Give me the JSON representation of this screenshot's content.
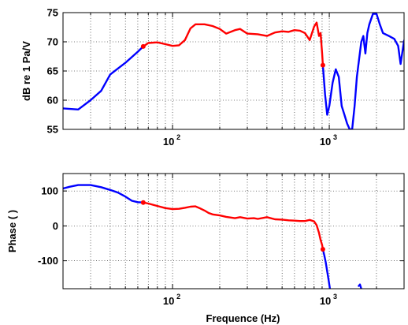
{
  "chart_data": [
    {
      "type": "line",
      "x_scale": "log",
      "xlim": [
        20,
        3000
      ],
      "ylim": [
        55,
        75
      ],
      "yticks": [
        55,
        60,
        65,
        70,
        75
      ],
      "ylabel": "dB re 1 Pa/V",
      "xlabel": "",
      "grid": "dotted",
      "series": [
        {
          "color": "#0000ff",
          "points": [
            [
              20,
              58.6
            ],
            [
              25,
              58.4
            ],
            [
              30,
              60
            ],
            [
              35,
              61.6
            ],
            [
              40,
              64.4
            ],
            [
              50,
              66.4
            ],
            [
              60,
              68.3
            ],
            [
              65,
              69.2
            ]
          ]
        },
        {
          "color": "#ff0000",
          "points": [
            [
              65,
              69.2
            ],
            [
              70,
              69.8
            ],
            [
              80,
              69.9
            ],
            [
              90,
              69.6
            ],
            [
              100,
              69.3
            ],
            [
              110,
              69.4
            ],
            [
              120,
              70.3
            ],
            [
              130,
              72.3
            ],
            [
              140,
              73
            ],
            [
              160,
              73
            ],
            [
              180,
              72.7
            ],
            [
              200,
              72.2
            ],
            [
              220,
              71.4
            ],
            [
              250,
              72
            ],
            [
              270,
              72.2
            ],
            [
              300,
              71.4
            ],
            [
              350,
              71.3
            ],
            [
              400,
              71
            ],
            [
              450,
              71.6
            ],
            [
              500,
              71.8
            ],
            [
              550,
              71.7
            ],
            [
              600,
              72
            ],
            [
              650,
              71.9
            ],
            [
              700,
              71.5
            ],
            [
              750,
              70.3
            ],
            [
              800,
              72.6
            ],
            [
              830,
              73.3
            ],
            [
              860,
              71
            ],
            [
              880,
              71.5
            ],
            [
              900,
              68
            ],
            [
              910,
              66
            ]
          ]
        },
        {
          "color": "#0000ff",
          "points": [
            [
              910,
              66
            ],
            [
              940,
              61
            ],
            [
              970,
              57.5
            ],
            [
              1000,
              59
            ],
            [
              1050,
              63
            ],
            [
              1100,
              65.3
            ],
            [
              1150,
              64
            ],
            [
              1200,
              59
            ],
            [
              1250,
              57.5
            ],
            [
              1300,
              56
            ],
            [
              1350,
              55
            ],
            [
              1400,
              55
            ],
            [
              1450,
              59
            ],
            [
              1500,
              64
            ],
            [
              1550,
              67
            ],
            [
              1600,
              70
            ],
            [
              1650,
              71
            ],
            [
              1700,
              68
            ],
            [
              1750,
              71.5
            ],
            [
              1800,
              73
            ],
            [
              1900,
              74.8
            ],
            [
              2000,
              74.8
            ],
            [
              2100,
              73
            ],
            [
              2200,
              71.5
            ],
            [
              2400,
              71
            ],
            [
              2600,
              70.5
            ],
            [
              2750,
              69.3
            ],
            [
              2850,
              66.2
            ],
            [
              3000,
              70.2
            ]
          ]
        }
      ],
      "markers": [
        {
          "x": 65,
          "y": 69.2,
          "color": "#ff0000"
        },
        {
          "x": 910,
          "y": 66,
          "color": "#ff0000"
        }
      ]
    },
    {
      "type": "line",
      "x_scale": "log",
      "xlim": [
        20,
        3000
      ],
      "ylim": [
        -180,
        150
      ],
      "yticks": [
        -100,
        0,
        100
      ],
      "ylabel": "Phase ( )",
      "xlabel": "Frequence (Hz)",
      "grid": "dotted",
      "series": [
        {
          "color": "#0000ff",
          "points": [
            [
              20,
              107
            ],
            [
              22,
              112
            ],
            [
              25,
              117
            ],
            [
              30,
              117
            ],
            [
              35,
              111
            ],
            [
              40,
              103
            ],
            [
              45,
              95
            ],
            [
              50,
              84
            ],
            [
              55,
              72
            ],
            [
              60,
              68
            ],
            [
              65,
              67
            ]
          ]
        },
        {
          "color": "#ff0000",
          "points": [
            [
              65,
              67
            ],
            [
              70,
              64
            ],
            [
              80,
              57
            ],
            [
              90,
              51
            ],
            [
              100,
              48
            ],
            [
              110,
              49
            ],
            [
              120,
              52
            ],
            [
              130,
              55
            ],
            [
              140,
              56
            ],
            [
              150,
              50
            ],
            [
              160,
              44
            ],
            [
              170,
              37
            ],
            [
              180,
              33
            ],
            [
              200,
              30
            ],
            [
              220,
              26
            ],
            [
              250,
              22
            ],
            [
              270,
              25
            ],
            [
              300,
              21
            ],
            [
              330,
              22
            ],
            [
              350,
              20
            ],
            [
              400,
              25
            ],
            [
              450,
              19
            ],
            [
              500,
              18
            ],
            [
              550,
              16
            ],
            [
              600,
              15
            ],
            [
              650,
              14
            ],
            [
              700,
              14
            ],
            [
              750,
              17
            ],
            [
              800,
              13
            ],
            [
              830,
              2
            ],
            [
              860,
              -20
            ],
            [
              880,
              -40
            ],
            [
              900,
              -55
            ],
            [
              910,
              -67
            ]
          ]
        },
        {
          "color": "#0000ff",
          "points": [
            [
              910,
              -67
            ],
            [
              930,
              -85
            ],
            [
              950,
              -105
            ],
            [
              970,
              -130
            ],
            [
              990,
              -155
            ],
            [
              1010,
              -180
            ]
          ]
        },
        {
          "color": "#0000ff",
          "points": [
            [
              1540,
              -172
            ],
            [
              1570,
              -168
            ],
            [
              1600,
              -180
            ]
          ]
        }
      ],
      "markers": [
        {
          "x": 65,
          "y": 67,
          "color": "#ff0000"
        },
        {
          "x": 910,
          "y": -67,
          "color": "#ff0000"
        }
      ]
    }
  ]
}
